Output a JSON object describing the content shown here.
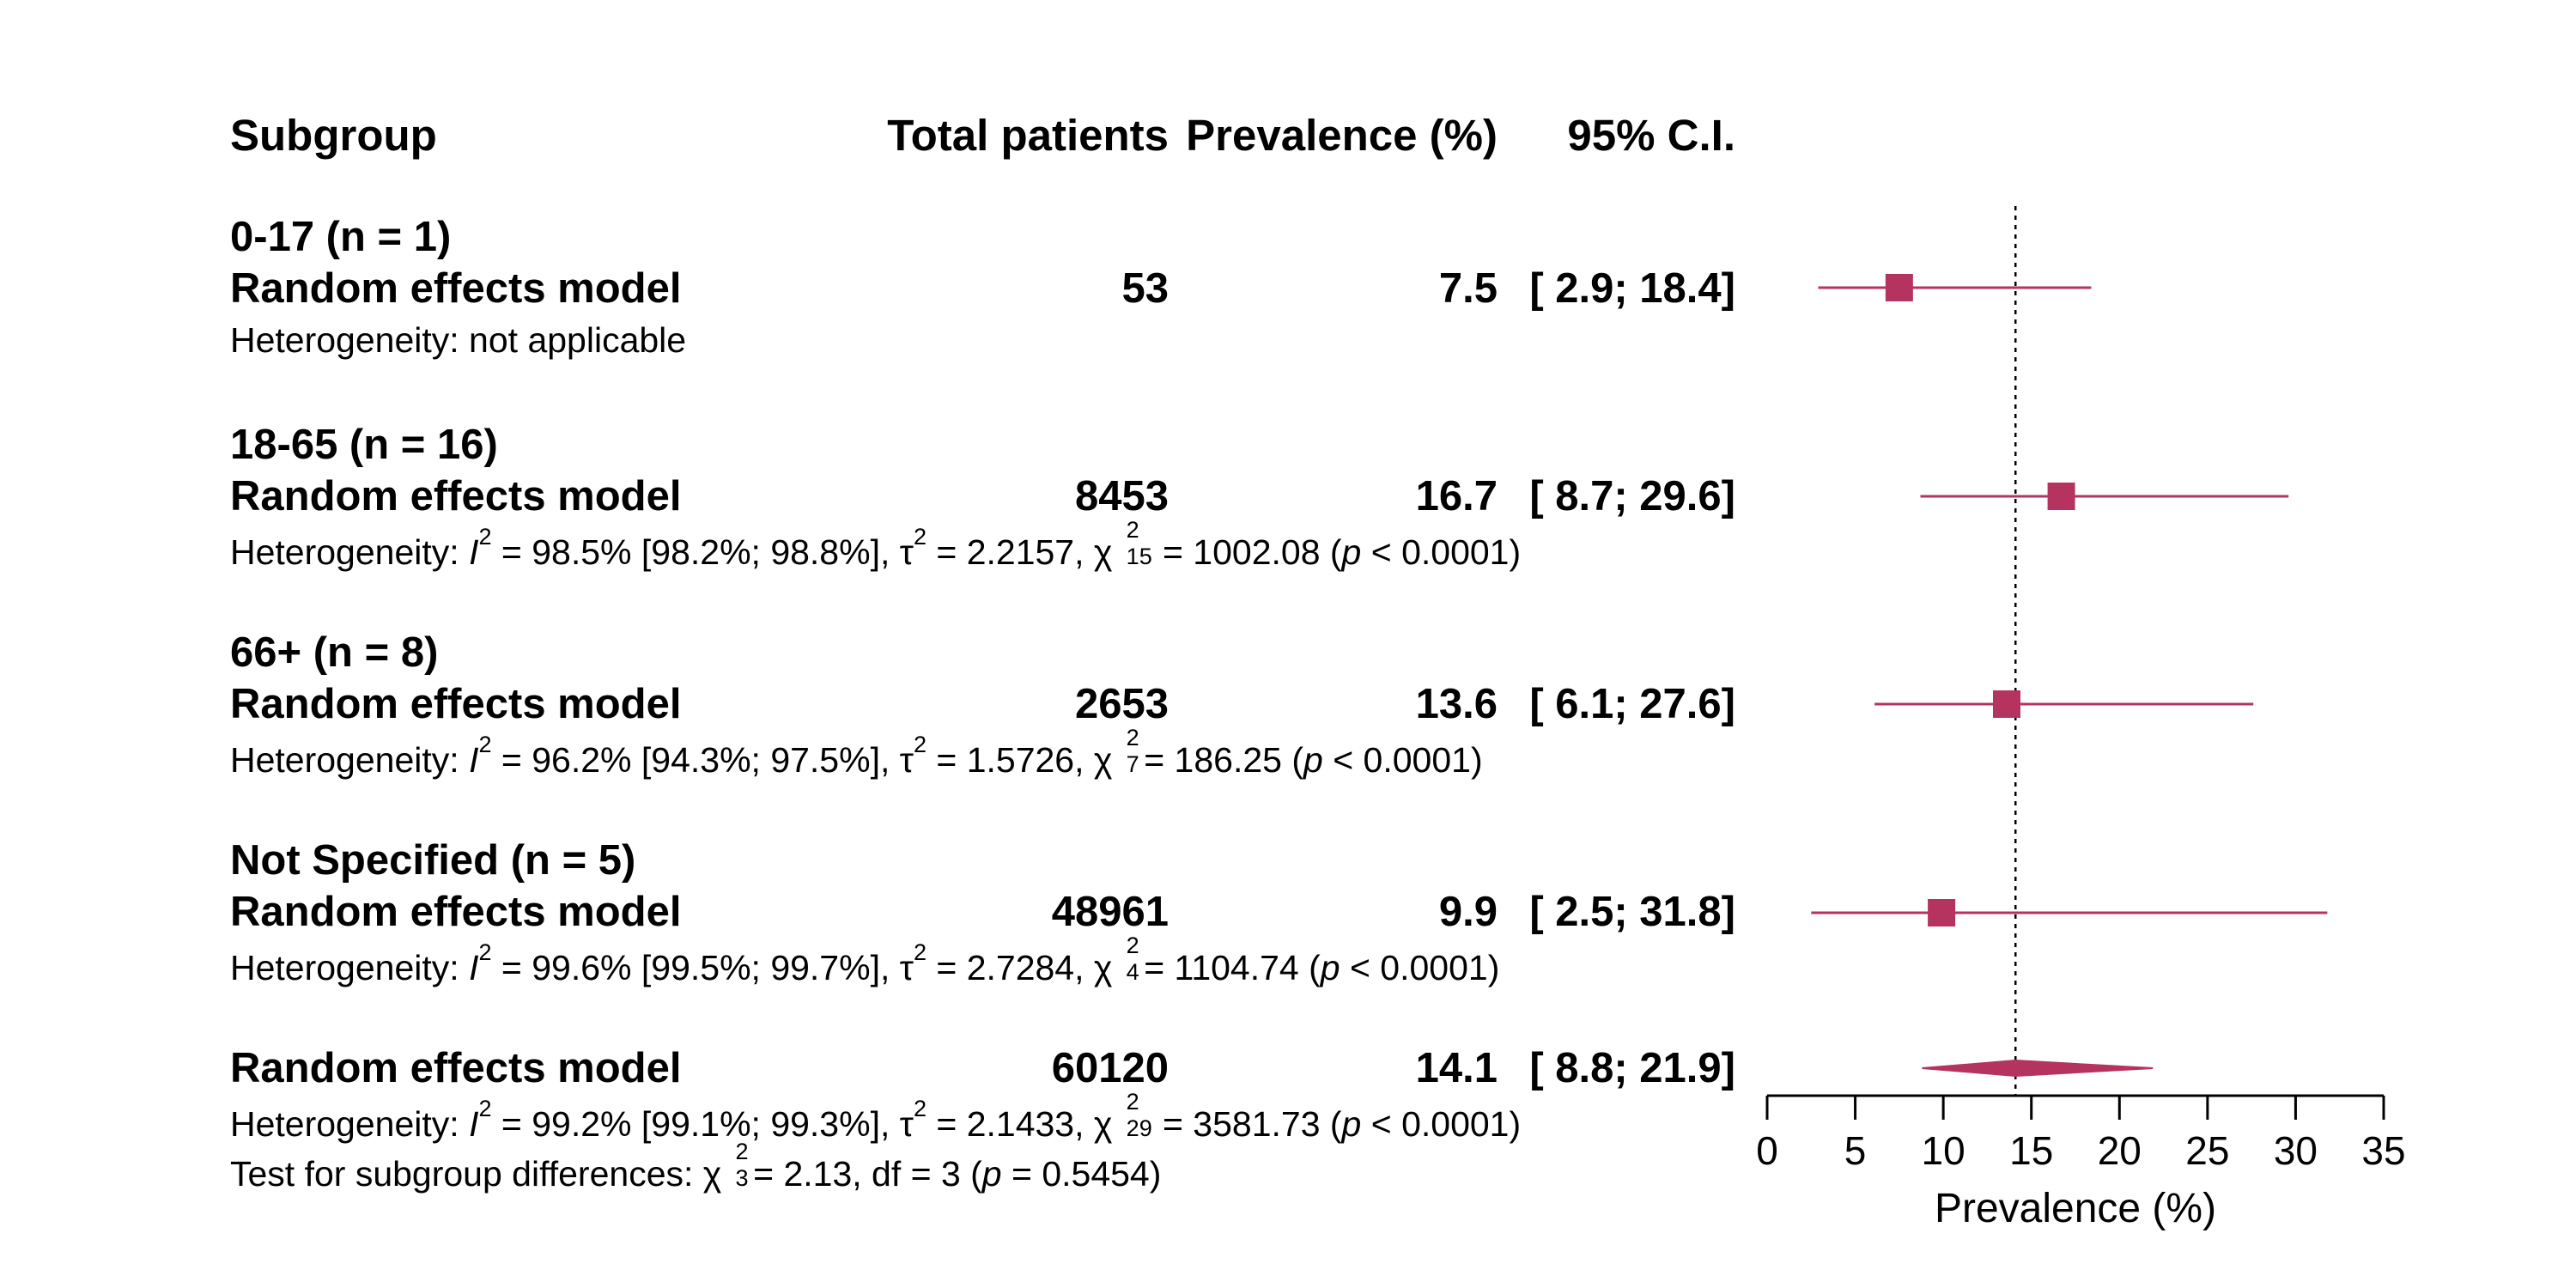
{
  "columns": {
    "subgroup": "Subgroup",
    "total_patients": "Total patients",
    "prevalence": "Prevalence (%)",
    "ci": "95% C.I."
  },
  "subgroups": [
    {
      "label": "0-17 (n = 1)",
      "model": "Random effects model",
      "total": "53",
      "prev": "7.5",
      "ci": "[ 2.9; 18.4]",
      "het": {
        "text": "Heterogeneity: not applicable"
      }
    },
    {
      "label": "18-65 (n = 16)",
      "model": "Random effects model",
      "total": "8453",
      "prev": "16.7",
      "ci": "[ 8.7; 29.6]",
      "het": {
        "prefix": "Heterogeneity: ",
        "I": "I",
        "i2": " = 98.5% [98.2%; 98.8%], τ",
        "tau": " = 2.2157, χ",
        "df": "15",
        "chi": " = 1002.08 (",
        "p": "p",
        "tail": " < 0.0001)"
      }
    },
    {
      "label": "66+ (n = 8)",
      "model": "Random effects model",
      "total": "2653",
      "prev": "13.6",
      "ci": "[ 6.1; 27.6]",
      "het": {
        "prefix": "Heterogeneity: ",
        "I": "I",
        "i2": " = 96.2% [94.3%; 97.5%], τ",
        "tau": " = 1.5726, χ",
        "df": "7",
        "chi": " = 186.25 (",
        "p": "p",
        "tail": " < 0.0001)"
      }
    },
    {
      "label": "Not Specified (n = 5)",
      "model": "Random effects model",
      "total": "48961",
      "prev": "9.9",
      "ci": "[ 2.5; 31.8]",
      "het": {
        "prefix": "Heterogeneity: ",
        "I": "I",
        "i2": " = 99.6% [99.5%; 99.7%], τ",
        "tau": " = 2.7284, χ",
        "df": "4",
        "chi": " = 1104.74 (",
        "p": "p",
        "tail": " < 0.0001)"
      }
    }
  ],
  "overall": {
    "model": "Random effects model",
    "total": "60120",
    "prev": "14.1",
    "ci": "[ 8.8; 21.9]",
    "het": {
      "prefix": "Heterogeneity: ",
      "I": "I",
      "i2": " = 99.2% [99.1%; 99.3%], τ",
      "tau": " = 2.1433, χ",
      "df": "29",
      "chi": " = 3581.73 (",
      "p": "p",
      "tail": " < 0.0001)"
    },
    "test": {
      "prefix": "Test for subgroup differences: χ",
      "df": "3",
      "mid": " = 2.13, df = 3 (",
      "p": "p",
      "tail": " = 0.5454)"
    }
  },
  "superscript": "2",
  "colors": {
    "marker": "#B5345F",
    "axis": "#000000"
  },
  "chart_data": {
    "type": "forest",
    "xlabel": "Prevalence (%)",
    "xlim": [
      0,
      35
    ],
    "ticks": [
      0,
      5,
      10,
      15,
      20,
      25,
      30,
      35
    ],
    "reference_line": 14.1,
    "points": [
      {
        "label": "0-17",
        "est": 7.5,
        "lo": 2.9,
        "hi": 18.4
      },
      {
        "label": "18-65",
        "est": 16.7,
        "lo": 8.7,
        "hi": 29.6
      },
      {
        "label": "66+",
        "est": 13.6,
        "lo": 6.1,
        "hi": 27.6
      },
      {
        "label": "Not Specified",
        "est": 9.9,
        "lo": 2.5,
        "hi": 31.8
      }
    ],
    "pooled": {
      "est": 14.1,
      "lo": 8.8,
      "hi": 21.9
    }
  }
}
